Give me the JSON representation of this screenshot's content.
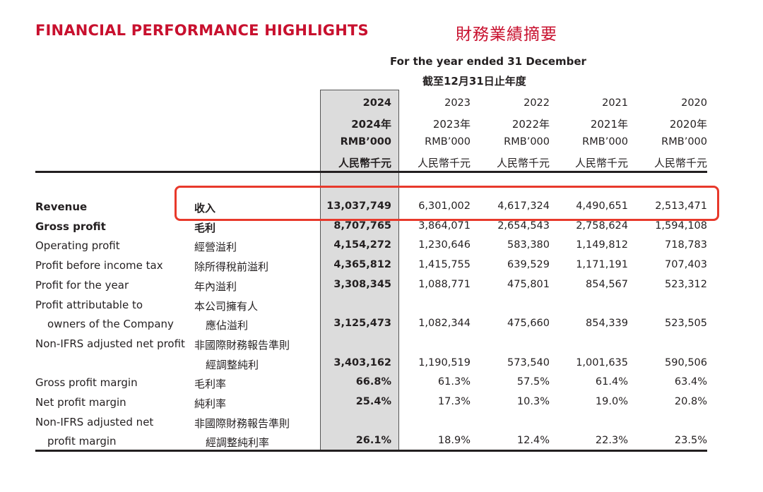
{
  "title_en": "FINANCIAL PERFORMANCE HIGHLIGHTS",
  "title_zh": "財務業績摘要",
  "period_en": "For the year ended 31 December",
  "period_zh": "截至12月31日止年度",
  "columns": [
    {
      "year": "2024",
      "year_zh": "2024年",
      "unit": "RMB’000",
      "unit_zh": "人民幣千元"
    },
    {
      "year": "2023",
      "year_zh": "2023年",
      "unit": "RMB’000",
      "unit_zh": "人民幣千元"
    },
    {
      "year": "2022",
      "year_zh": "2022年",
      "unit": "RMB’000",
      "unit_zh": "人民幣千元"
    },
    {
      "year": "2021",
      "year_zh": "2021年",
      "unit": "RMB’000",
      "unit_zh": "人民幣千元"
    },
    {
      "year": "2020",
      "year_zh": "2020年",
      "unit": "RMB’000",
      "unit_zh": "人民幣千元"
    }
  ],
  "rows": [
    {
      "label": "Revenue",
      "label_zh": "收入",
      "values": [
        "13,037,749",
        "6,301,002",
        "4,617,324",
        "4,490,651",
        "2,513,471"
      ]
    },
    {
      "label": "Gross profit",
      "label_zh": "毛利",
      "values": [
        "8,707,765",
        "3,864,071",
        "2,654,543",
        "2,758,624",
        "1,594,108"
      ]
    },
    {
      "label": "Operating profit",
      "label_zh": "經營溢利",
      "values": [
        "4,154,272",
        "1,230,646",
        "583,380",
        "1,149,812",
        "718,783"
      ]
    },
    {
      "label": "Profit before income tax",
      "label_zh": "除所得稅前溢利",
      "values": [
        "4,365,812",
        "1,415,755",
        "639,529",
        "1,171,191",
        "707,403"
      ]
    },
    {
      "label": "Profit for the year",
      "label_zh": "年內溢利",
      "values": [
        "3,308,345",
        "1,088,771",
        "475,801",
        "854,567",
        "523,312"
      ]
    },
    {
      "label": "Profit attributable to",
      "label2": "owners of the Company",
      "label_zh": "本公司擁有人",
      "label_zh2": "應佔溢利",
      "values": [
        "3,125,473",
        "1,082,344",
        "475,660",
        "854,339",
        "523,505"
      ]
    },
    {
      "label": "Non-IFRS adjusted net profit",
      "label_zh": "非國際財務報告準則",
      "label_zh2": "經調整純利",
      "values": [
        "3,403,162",
        "1,190,519",
        "573,540",
        "1,001,635",
        "590,506"
      ]
    },
    {
      "label": "Gross profit margin",
      "label_zh": "毛利率",
      "values": [
        "66.8%",
        "61.3%",
        "57.5%",
        "61.4%",
        "63.4%"
      ]
    },
    {
      "label": "Net profit margin",
      "label_zh": "純利率",
      "values": [
        "25.4%",
        "17.3%",
        "10.3%",
        "19.0%",
        "20.8%"
      ]
    },
    {
      "label": "Non-IFRS adjusted net",
      "label2": "profit margin",
      "label_zh": "非國際財務報告準則",
      "label_zh2": "經調整純利率",
      "values": [
        "26.1%",
        "18.9%",
        "12.4%",
        "22.3%",
        "23.5%"
      ]
    }
  ]
}
